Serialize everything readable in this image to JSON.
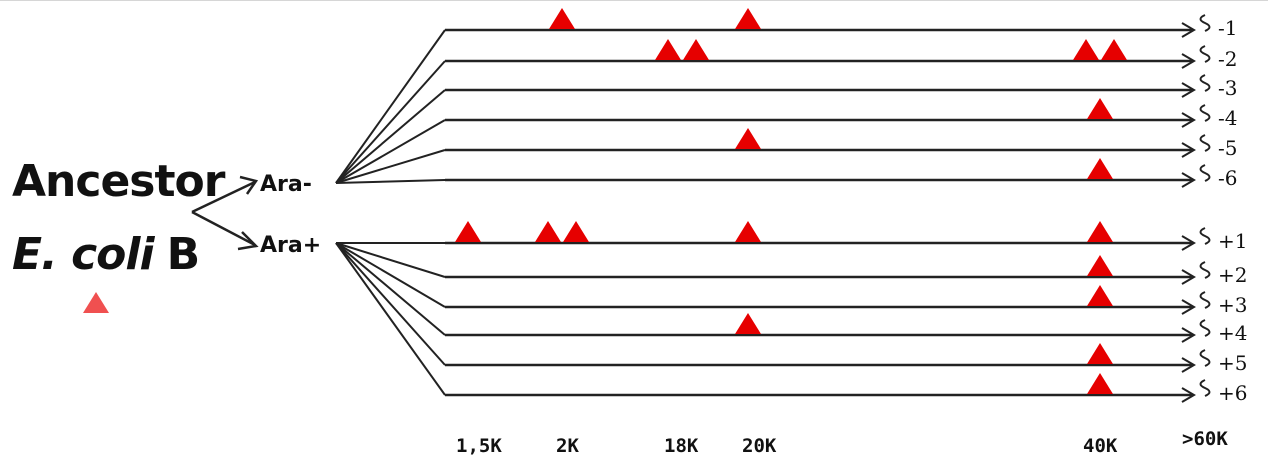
{
  "ancestor": {
    "label_line1": "Ancestor",
    "label_line2_italic": "E. coli",
    "label_line2_strain": "B"
  },
  "groups": {
    "minus": {
      "label": "Ara-"
    },
    "plus": {
      "label": "Ara+"
    }
  },
  "populations_minus": [
    {
      "label": "-1",
      "mutations": [
        "2K",
        "20K"
      ]
    },
    {
      "label": "-2",
      "mutations": [
        "18K",
        "18K",
        "40K",
        "40K"
      ]
    },
    {
      "label": "-3",
      "mutations": []
    },
    {
      "label": "-4",
      "mutations": [
        "40K"
      ]
    },
    {
      "label": "-5",
      "mutations": [
        "20K"
      ]
    },
    {
      "label": "-6",
      "mutations": [
        "40K"
      ]
    }
  ],
  "populations_plus": [
    {
      "label": "+1",
      "mutations": [
        "1,5K",
        "2K",
        "2K",
        "20K",
        "40K"
      ]
    },
    {
      "label": "+2",
      "mutations": [
        "40K"
      ]
    },
    {
      "label": "+3",
      "mutations": [
        "40K"
      ]
    },
    {
      "label": "+4",
      "mutations": [
        "20K"
      ]
    },
    {
      "label": "+5",
      "mutations": [
        "40K"
      ]
    },
    {
      "label": "+6",
      "mutations": [
        "40K"
      ]
    }
  ],
  "generation_labels": [
    "1,5K",
    "2K",
    "18K",
    "20K",
    "40K",
    ">60K"
  ],
  "colors": {
    "mutation_marker": "#e60000",
    "ancestor_marker": "#f05050",
    "lineage_line": "#222222"
  },
  "icons": {
    "mutation": "red-triangle-icon",
    "lineage_end": "arrowhead-icon",
    "break": "wavy-break-icon"
  }
}
